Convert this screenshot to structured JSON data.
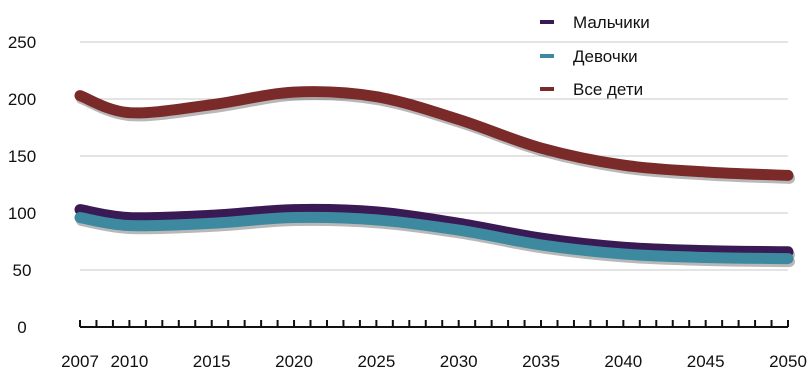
{
  "chart_data": {
    "type": "line",
    "title": "",
    "xlabel": "",
    "ylabel": "",
    "x": [
      2007,
      2010,
      2015,
      2020,
      2025,
      2030,
      2035,
      2040,
      2045,
      2050
    ],
    "x_tick_labels": [
      "2007",
      "2010",
      "2015",
      "2020",
      "2025",
      "2030",
      "2035",
      "2040",
      "2045",
      "2050"
    ],
    "y_tick_labels": [
      "0",
      "50",
      "100",
      "150",
      "200",
      "250"
    ],
    "xlim": [
      2007,
      2050
    ],
    "ylim": [
      0,
      250
    ],
    "grid": true,
    "legend_position": "top-right",
    "series": [
      {
        "name": "Мальчики",
        "color": "#3a1a55",
        "values": [
          103,
          96,
          98,
          103,
          101,
          91,
          78,
          70,
          67,
          66
        ]
      },
      {
        "name": "Девочки",
        "color": "#3d8aa0",
        "values": [
          96,
          89,
          91,
          96,
          94,
          85,
          72,
          64,
          61,
          60
        ]
      },
      {
        "name": "Все дети",
        "color": "#7a2a28",
        "values": [
          203,
          188,
          195,
          206,
          202,
          182,
          157,
          142,
          136,
          133
        ]
      }
    ]
  }
}
